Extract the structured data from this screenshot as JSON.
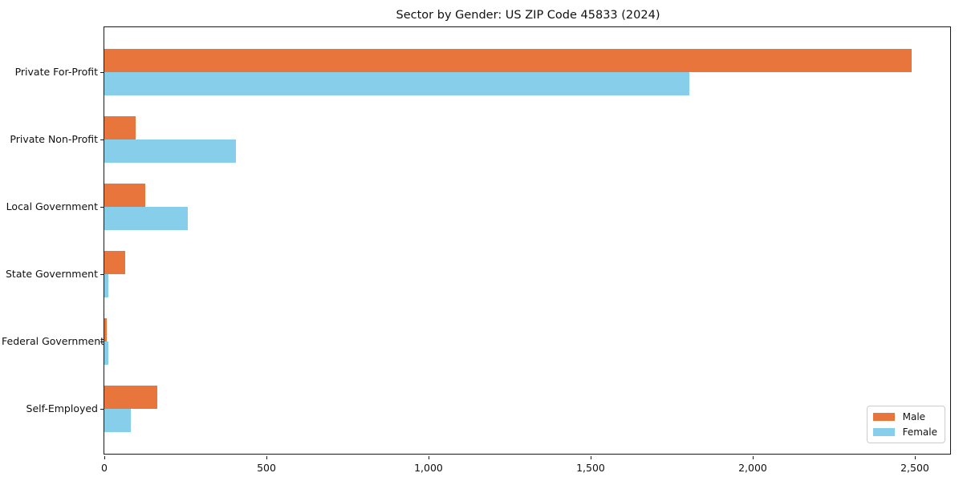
{
  "chart_data": {
    "type": "bar",
    "orientation": "horizontal",
    "title": "Sector by Gender: US ZIP Code 45833 (2024)",
    "xlabel": "",
    "ylabel": "",
    "categories": [
      "Private For-Profit",
      "Private Non-Profit",
      "Local Government",
      "State Government",
      "Federal Government",
      "Self-Employed"
    ],
    "series": [
      {
        "name": "Male",
        "color": "#e8763c",
        "values": [
          2490,
          97,
          126,
          64,
          8,
          163
        ]
      },
      {
        "name": "Female",
        "color": "#87ceeb",
        "values": [
          1805,
          405,
          257,
          12,
          13,
          82
        ]
      }
    ],
    "xlim": [
      0,
      2614
    ],
    "xticks": [
      0,
      500,
      1000,
      1500,
      2000,
      2500
    ],
    "xtick_labels": [
      "0",
      "500",
      "1,000",
      "1,500",
      "2,000",
      "2,500"
    ],
    "grid": false,
    "legend_position": "lower right"
  },
  "legend": {
    "items": [
      {
        "label": "Male",
        "color": "#e8763c"
      },
      {
        "label": "Female",
        "color": "#87ceeb"
      }
    ]
  }
}
